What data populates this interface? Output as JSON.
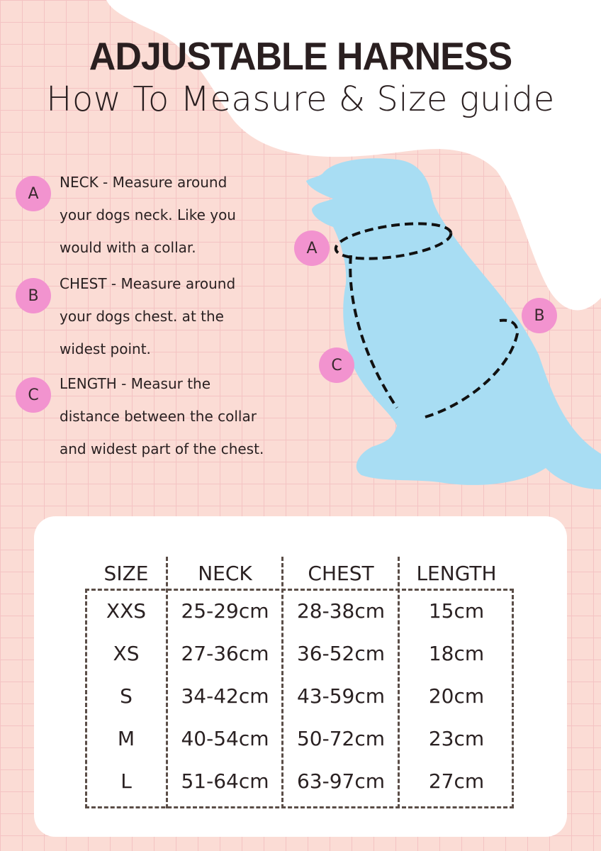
{
  "header": {
    "title": "ADJUSTABLE HARNESS",
    "subtitle": "How To Measure & Size guide"
  },
  "instructions": [
    {
      "letter": "A",
      "lines": [
        "NECK - Measure around",
        "your dogs neck. Like you",
        "would with a collar."
      ]
    },
    {
      "letter": "B",
      "lines": [
        "CHEST - Measure around",
        "your dogs chest. at the",
        "widest point."
      ]
    },
    {
      "letter": "C",
      "lines": [
        "LENGTH - Measur the",
        "distance between the collar",
        "and widest part of the chest."
      ]
    }
  ],
  "diagram": {
    "markers": [
      "A",
      "B",
      "C"
    ]
  },
  "size_table": {
    "headers": [
      "SIZE",
      "NECK",
      "CHEST",
      "LENGTH"
    ],
    "rows": [
      [
        "XXS",
        "25-29cm",
        "28-38cm",
        "15cm"
      ],
      [
        "XS",
        "27-36cm",
        "36-52cm",
        "18cm"
      ],
      [
        "S",
        "34-42cm",
        "43-59cm",
        "20cm"
      ],
      [
        "M",
        "40-54cm",
        "50-72cm",
        "23cm"
      ],
      [
        "L",
        "51-64cm",
        "63-97cm",
        "27cm"
      ]
    ]
  },
  "colors": {
    "background": "#fbdcd5",
    "dog": "#a8ddf3",
    "badge": "#f293cf",
    "text": "#2a2122",
    "dash": "#5a4d47"
  }
}
